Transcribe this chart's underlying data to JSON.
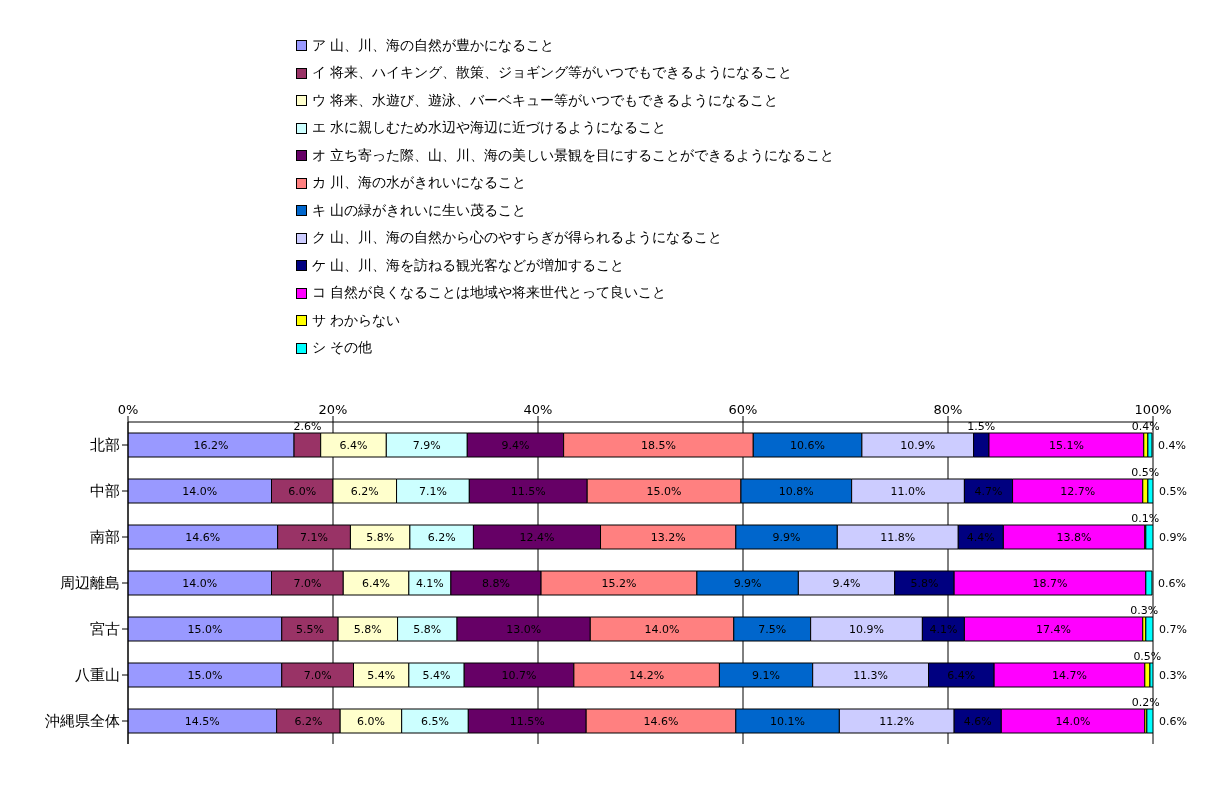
{
  "chart_data": {
    "type": "bar",
    "orientation": "horizontal",
    "stacked": true,
    "grid": "x",
    "legend": "top",
    "xlim": [
      0,
      100
    ],
    "xticks": [
      {
        "value": 0,
        "label": "0%"
      },
      {
        "value": 20,
        "label": "20%"
      },
      {
        "value": 40,
        "label": "40%"
      },
      {
        "value": 60,
        "label": "60%"
      },
      {
        "value": 80,
        "label": "80%"
      },
      {
        "value": 100,
        "label": "100%"
      }
    ],
    "categories": [
      "北部",
      "中部",
      "南部",
      "周辺離島",
      "宮古",
      "八重山",
      "沖縄県全体"
    ],
    "series": [
      {
        "name": "ア 山、川、海の自然が豊かになること",
        "color": "#9999ff",
        "values": [
          16.2,
          14.0,
          14.6,
          14.0,
          15.0,
          15.0,
          14.5
        ],
        "value_labels": [
          "16.2%",
          "14.0%",
          "14.6%",
          "14.0%",
          "15.0%",
          "15.0%",
          "14.5%"
        ]
      },
      {
        "name": "イ 将来、ハイキング、散策、ジョギング等がいつでもできるようになること",
        "color": "#993366",
        "values": [
          2.6,
          6.0,
          7.1,
          7.0,
          5.5,
          7.0,
          6.2
        ],
        "value_labels": [
          "2.6%",
          "6.0%",
          "7.1%",
          "7.0%",
          "5.5%",
          "7.0%",
          "6.2%"
        ]
      },
      {
        "name": "ウ 将来、水遊び、遊泳、バーベキュー等がいつでもできるようになること",
        "color": "#ffffcc",
        "values": [
          6.4,
          6.2,
          5.8,
          6.4,
          5.8,
          5.4,
          6.0
        ],
        "value_labels": [
          "6.4%",
          "6.2%",
          "5.8%",
          "6.4%",
          "5.8%",
          "5.4%",
          "6.0%"
        ]
      },
      {
        "name": "エ 水に親しむため水辺や海辺に近づけるようになること",
        "color": "#ccffff",
        "values": [
          7.9,
          7.1,
          6.2,
          4.1,
          5.8,
          5.4,
          6.5
        ],
        "value_labels": [
          "7.9%",
          "7.1%",
          "6.2%",
          "4.1%",
          "5.8%",
          "5.4%",
          "6.5%"
        ]
      },
      {
        "name": "オ 立ち寄った際、山、川、海の美しい景観を目にすることができるようになること",
        "color": "#660066",
        "values": [
          9.4,
          11.5,
          12.4,
          8.8,
          13.0,
          10.7,
          11.5
        ],
        "value_labels": [
          "9.4%",
          "11.5%",
          "12.4%",
          "8.8%",
          "13.0%",
          "10.7%",
          "11.5%"
        ]
      },
      {
        "name": "カ 川、海の水がきれいになること",
        "color": "#ff8080",
        "values": [
          18.5,
          15.0,
          13.2,
          15.2,
          14.0,
          14.2,
          14.6
        ],
        "value_labels": [
          "18.5%",
          "15.0%",
          "13.2%",
          "15.2%",
          "14.0%",
          "14.2%",
          "14.6%"
        ]
      },
      {
        "name": "キ 山の緑がきれいに生い茂ること",
        "color": "#0066cc",
        "values": [
          10.6,
          10.8,
          9.9,
          9.9,
          7.5,
          9.1,
          10.1
        ],
        "value_labels": [
          "10.6%",
          "10.8%",
          "9.9%",
          "9.9%",
          "7.5%",
          "9.1%",
          "10.1%"
        ]
      },
      {
        "name": "ク 山、川、海の自然から心のやすらぎが得られるようになること",
        "color": "#ccccff",
        "values": [
          10.9,
          11.0,
          11.8,
          9.4,
          10.9,
          11.3,
          11.2
        ],
        "value_labels": [
          "10.9%",
          "11.0%",
          "11.8%",
          "9.4%",
          "10.9%",
          "11.3%",
          "11.2%"
        ]
      },
      {
        "name": "ケ 山、川、海を訪ねる観光客などが増加すること",
        "color": "#000080",
        "values": [
          1.5,
          4.7,
          4.4,
          5.8,
          4.1,
          6.4,
          4.6
        ],
        "value_labels": [
          "1.5%",
          "4.7%",
          "4.4%",
          "5.8%",
          "4.1%",
          "6.4%",
          "4.6%"
        ]
      },
      {
        "name": "コ 自然が良くなることは地域や将来世代とって良いこと",
        "color": "#ff00ff",
        "values": [
          15.1,
          12.7,
          13.8,
          18.7,
          17.4,
          14.7,
          14.0
        ],
        "value_labels": [
          "15.1%",
          "12.7%",
          "13.8%",
          "18.7%",
          "17.4%",
          "14.7%",
          "14.0%"
        ]
      },
      {
        "name": "サ わからない",
        "color": "#ffff00",
        "values": [
          0.4,
          0.5,
          0.1,
          null,
          0.3,
          0.5,
          0.2
        ],
        "value_labels": [
          "0.4%",
          "0.5%",
          "0.1%",
          null,
          "0.3%",
          "0.5%",
          "0.2%"
        ]
      },
      {
        "name": "シ その他",
        "color": "#00ffff",
        "values": [
          0.4,
          0.5,
          0.9,
          0.6,
          0.7,
          0.3,
          0.6
        ],
        "value_labels": [
          "0.4%",
          "0.5%",
          "0.9%",
          "0.6%",
          "0.7%",
          "0.3%",
          "0.6%"
        ]
      }
    ]
  }
}
